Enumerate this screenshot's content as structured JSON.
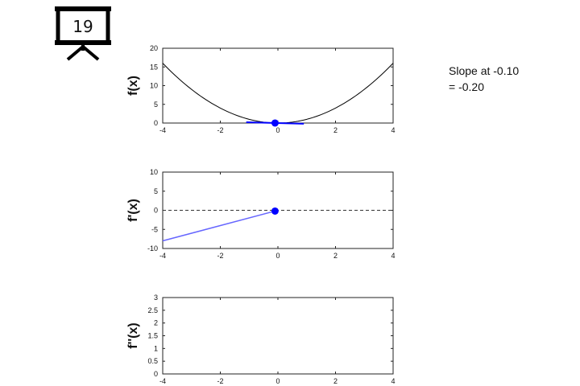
{
  "slide": {
    "number": "19",
    "icon": "projector-screen-icon"
  },
  "annotation": {
    "line1": "Slope at -0.10",
    "line2": "= -0.20"
  },
  "colors": {
    "curve": "#000000",
    "accent": "#0000ff",
    "derivative": "#6666ff",
    "zero_line": "#333333"
  },
  "chart_data": [
    {
      "type": "line",
      "ylabel": "f(x)",
      "xlim": [
        -4,
        4
      ],
      "ylim": [
        0,
        20
      ],
      "xticks": [
        -4,
        -2,
        0,
        2,
        4
      ],
      "yticks": [
        0,
        5,
        10,
        15,
        20
      ],
      "series": [
        {
          "function": "x^2",
          "x_range": [
            -4,
            4
          ]
        }
      ],
      "tangent": {
        "x0": -0.1,
        "y0": 0.01,
        "slope": -0.2,
        "x_range": [
          -1.1,
          0.9
        ]
      },
      "point": {
        "x": -0.1,
        "y": 0.01
      }
    },
    {
      "type": "line",
      "ylabel": "f'(x)",
      "xlim": [
        -4,
        4
      ],
      "ylim": [
        -10,
        10
      ],
      "xticks": [
        -4,
        -2,
        0,
        2,
        4
      ],
      "yticks": [
        -10,
        -5,
        0,
        5,
        10
      ],
      "series": [
        {
          "x": [
            -4,
            -0.1
          ],
          "y": [
            -8,
            -0.2
          ]
        }
      ],
      "reference_line": {
        "y": 0,
        "style": "dashed"
      },
      "point": {
        "x": -0.1,
        "y": -0.2
      }
    },
    {
      "type": "line",
      "ylabel": "f''(x)",
      "xlim": [
        -4,
        4
      ],
      "ylim": [
        0,
        3
      ],
      "xticks": [
        -4,
        -2,
        0,
        2,
        4
      ],
      "yticks": [
        0,
        0.5,
        1,
        1.5,
        2,
        2.5,
        3
      ],
      "series": []
    }
  ]
}
